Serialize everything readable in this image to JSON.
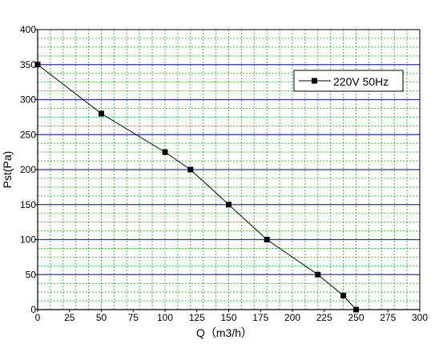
{
  "chart_data": {
    "type": "line",
    "title": "",
    "xlabel": "Q（m3/h）",
    "ylabel": "Pst(Pa)",
    "xlim": [
      0,
      300
    ],
    "ylim": [
      0,
      400
    ],
    "x_ticks": [
      "0",
      "25",
      "50",
      "75",
      "100",
      "125",
      "150",
      "175",
      "200",
      "225",
      "250",
      "275",
      "300"
    ],
    "y_ticks": [
      "0",
      "50",
      "100",
      "150",
      "200",
      "250",
      "300",
      "350",
      "400"
    ],
    "grid": true,
    "legend_position": "top-right",
    "series": [
      {
        "name": "220V 50Hz",
        "marker": "square",
        "x": [
          0,
          50,
          100,
          120,
          150,
          180,
          220,
          240,
          250
        ],
        "y": [
          350,
          280,
          225,
          200,
          150,
          100,
          50,
          20,
          0
        ]
      }
    ],
    "colors": {
      "major_grid": "#2f2fb4",
      "minor_grid": "#3fbf3f",
      "series_line": "#000000",
      "axis": "#000000"
    }
  }
}
